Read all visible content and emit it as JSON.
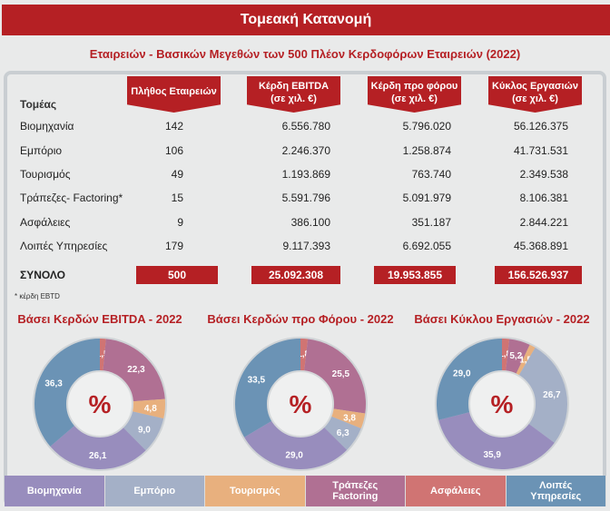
{
  "header": {
    "title": "Τομεακή Κατανομή"
  },
  "subtitle": "Εταιρειών - Βασικών Μεγεθών των 500 Πλέον Κερδοφόρων Εταιρειών  (2022)",
  "table": {
    "sector_label": "Τομέας",
    "columns": [
      {
        "l1": "Πλήθος Εταιρειών",
        "l2": ""
      },
      {
        "l1": "Κέρδη EBITDA",
        "l2": "(σε χιλ. €)"
      },
      {
        "l1": "Κέρδη προ φόρου",
        "l2": "(σε χιλ. €)"
      },
      {
        "l1": "Κύκλος Εργασιών",
        "l2": "(σε χιλ. €)"
      }
    ],
    "rows": [
      [
        "Βιομηχανία",
        "142",
        "6.556.780",
        "5.796.020",
        "56.126.375"
      ],
      [
        "Εμπόριο",
        "106",
        "2.246.370",
        "1.258.874",
        "41.731.531"
      ],
      [
        "Τουρισμός",
        "49",
        "1.193.869",
        "763.740",
        "2.349.538"
      ],
      [
        "Τράπεζες- Factoring*",
        "15",
        "5.591.796",
        "5.091.979",
        "8.106.381"
      ],
      [
        "Ασφάλειες",
        "9",
        "386.100",
        "351.187",
        "2.844.221"
      ],
      [
        "Λοιπές Υπηρεσίες",
        "179",
        "9.117.393",
        "6.692.055",
        "45.368.891"
      ]
    ],
    "total": [
      "ΣΥΝΟΛΟ",
      "500",
      "25.092.308",
      "19.953.855",
      "156.526.937"
    ],
    "footnote": "* κέρδη EBTD"
  },
  "chart_data": [
    {
      "type": "pie",
      "title": "Βάσει Κερδών EBITDA - 2022",
      "center_label": "%",
      "categories": [
        "Ασφάλειες",
        "Τράπεζες Factoring",
        "Τουρισμός",
        "Εμπόριο",
        "Βιομηχανία",
        "Λοιπές Υπηρεσίες"
      ],
      "values": [
        1.5,
        22.3,
        4.8,
        9.0,
        26.1,
        36.3
      ],
      "labels": [
        "1,5",
        "22,3",
        "4,8",
        "9,0",
        "26,1",
        "36,3"
      ]
    },
    {
      "type": "pie",
      "title": "Βάσει Κερδών προ Φόρου - 2022",
      "center_label": "%",
      "categories": [
        "Ασφάλειες",
        "Τράπεζες Factoring",
        "Τουρισμός",
        "Εμπόριο",
        "Βιομηχανία",
        "Λοιπές Υπηρεσίες"
      ],
      "values": [
        1.8,
        25.5,
        3.8,
        6.3,
        29.0,
        33.5
      ],
      "labels": [
        "1,8",
        "25,5",
        "3,8",
        "6,3",
        "29,0",
        "33,5"
      ]
    },
    {
      "type": "pie",
      "title": "Βάσει Κύκλου Εργασιών - 2022",
      "center_label": "%",
      "categories": [
        "Ασφάλειες",
        "Τράπεζες Factoring",
        "Τουρισμός",
        "Εμπόριο",
        "Βιομηχανία",
        "Λοιπές Υπηρεσίες"
      ],
      "values": [
        1.8,
        5.2,
        1.5,
        26.7,
        35.9,
        29.0
      ],
      "labels": [
        "1,8",
        "5,2",
        "1,5",
        "26,7",
        "35,9",
        "29,0"
      ]
    }
  ],
  "colors": {
    "Ασφάλειες": "#d07473",
    "Τράπεζες Factoring": "#b07093",
    "Τουρισμός": "#e8b07e",
    "Εμπόριο": "#a4b0c7",
    "Βιομηχανία": "#988dbd",
    "Λοιπές Υπηρεσίες": "#6b93b5",
    "accent": "#b52024"
  },
  "legend": [
    {
      "label": "Βιομηχανία",
      "key": "Βιομηχανία"
    },
    {
      "label": "Εμπόριο",
      "key": "Εμπόριο"
    },
    {
      "label": "Τουρισμός",
      "key": "Τουρισμός"
    },
    {
      "label": "Τράπεζες\nFactoring",
      "key": "Τράπεζες Factoring"
    },
    {
      "label": "Ασφάλειες",
      "key": "Ασφάλειες"
    },
    {
      "label": "Λοιπές\nΥπηρεσίες",
      "key": "Λοιπές Υπηρεσίες"
    }
  ]
}
